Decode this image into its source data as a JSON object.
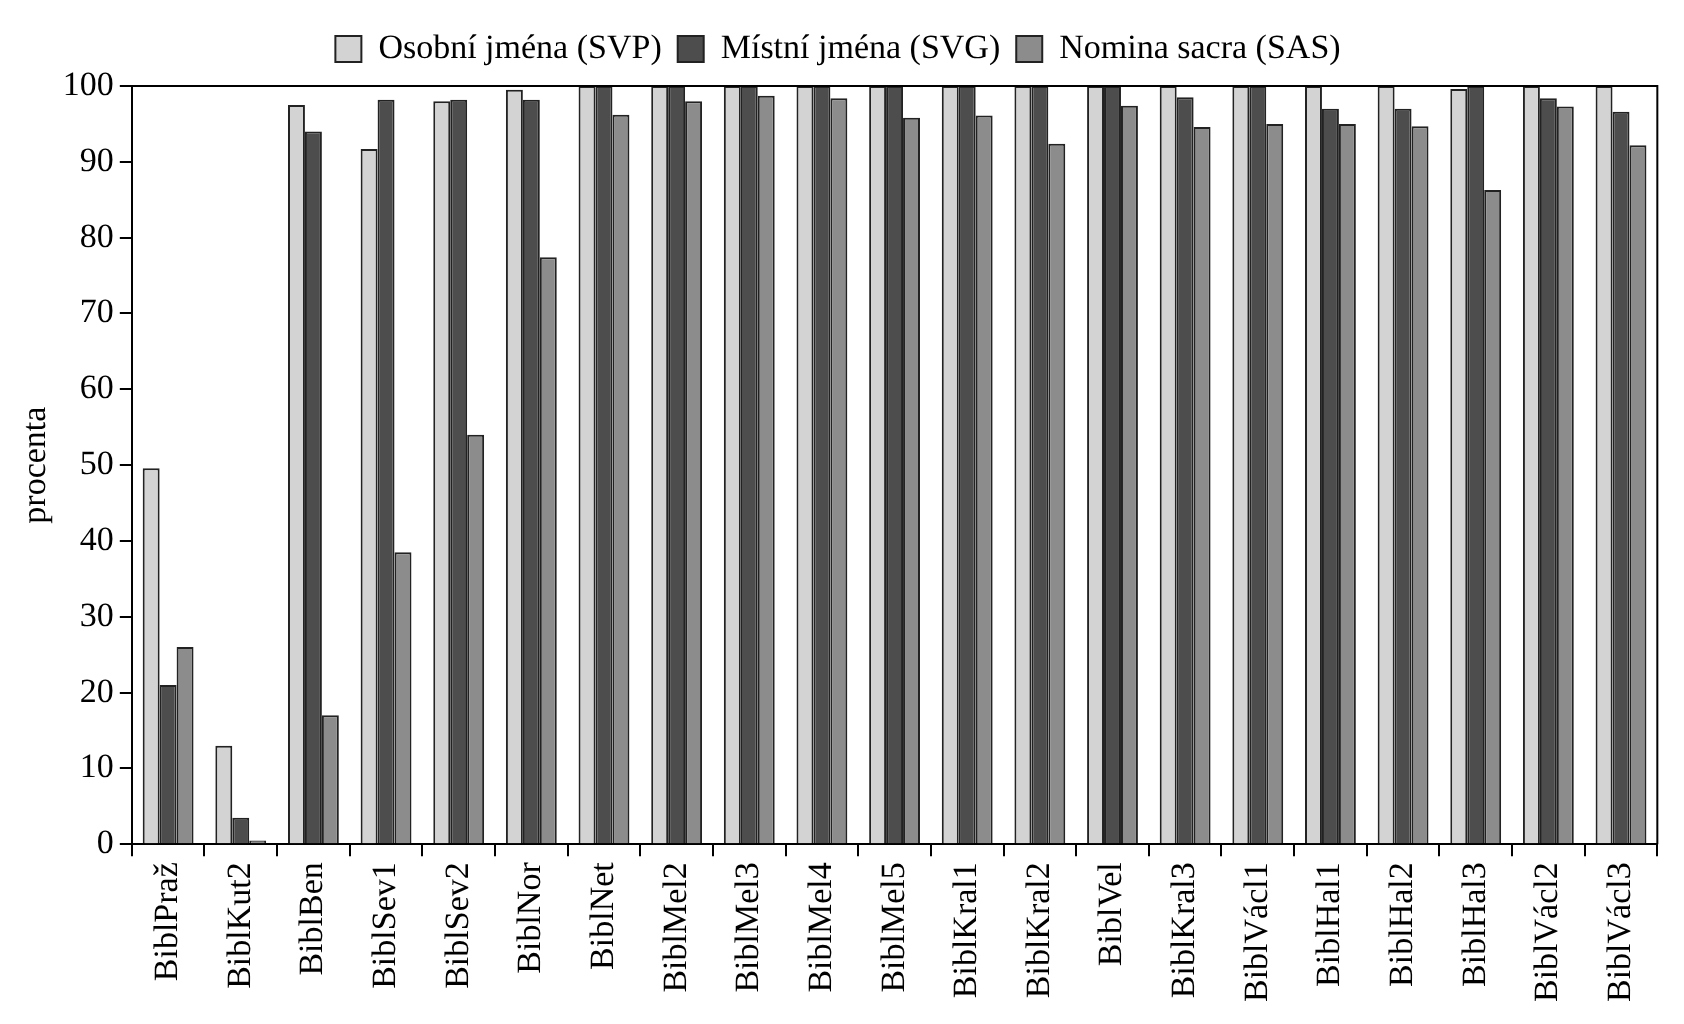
{
  "chart_data": {
    "type": "bar",
    "ylabel": "procenta",
    "categories": [
      "BiblPraž",
      "BiblKut2",
      "BiblBen",
      "BiblSev1",
      "BiblSev2",
      "BiblNor",
      "BiblNet",
      "BiblMel2",
      "BiblMel3",
      "BiblMel4",
      "BiblMel5",
      "BiblKral1",
      "BiblKral2",
      "BiblVel",
      "BiblKral3",
      "BiblVácl1",
      "BiblHal1",
      "BiblHal2",
      "BiblHal3",
      "BiblVácl2",
      "BiblVácl3"
    ],
    "series": [
      {
        "name": "Osobní jména (SVP)",
        "color": "#d3d3d3",
        "values": [
          49.6,
          13,
          97.5,
          91.7,
          98,
          99.5,
          100,
          100,
          100,
          100,
          100,
          100,
          100,
          100,
          100,
          100,
          100,
          100,
          99.6,
          100,
          100
        ]
      },
      {
        "name": "Místní jména (SVG)",
        "color": "#4d4d4d",
        "values": [
          21,
          3.5,
          94,
          98.2,
          98.2,
          98.2,
          100,
          100,
          100,
          100,
          100,
          100,
          100,
          100,
          98.5,
          100,
          97,
          97,
          100,
          98.4,
          96.6
        ]
      },
      {
        "name": "Nomina sacra (SAS)",
        "color": "#8c8c8c",
        "values": [
          26,
          0.5,
          17,
          38.5,
          54,
          77.4,
          96.2,
          98,
          98.7,
          98.4,
          95.8,
          96.1,
          92.4,
          97.4,
          94.6,
          95,
          95,
          94.7,
          86.3,
          97.3,
          92.2
        ]
      }
    ],
    "ylim": [
      0,
      100
    ],
    "yticks": [
      0,
      10,
      20,
      30,
      40,
      50,
      60,
      70,
      80,
      90,
      100
    ],
    "grid": false,
    "legend": "top"
  }
}
